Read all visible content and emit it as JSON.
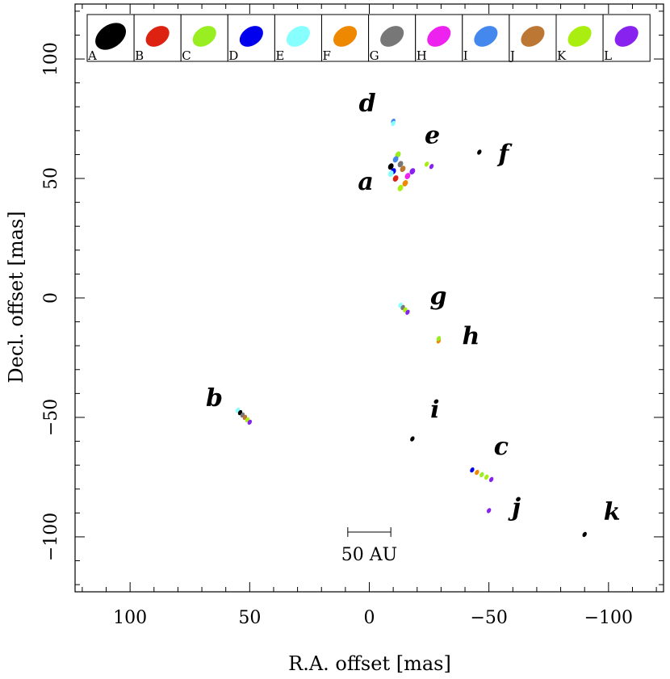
{
  "chart_data": {
    "type": "scatter",
    "title": "",
    "xlabel": "R.A. offset [mas]",
    "ylabel": "Decl. offset [mas]",
    "xlim": [
      123,
      -123
    ],
    "ylim": [
      -123,
      123
    ],
    "x_ticks": [
      100,
      50,
      0,
      -50,
      -100
    ],
    "x_tick_labels": [
      "100",
      "50",
      "0",
      "−50",
      "−100"
    ],
    "y_ticks": [
      100,
      50,
      0,
      -50,
      -100
    ],
    "y_tick_labels": [
      "100",
      "50",
      "0",
      "−50",
      "−100"
    ],
    "legend": [
      {
        "label": "A",
        "color": "#000000"
      },
      {
        "label": "B",
        "color": "#dd2211"
      },
      {
        "label": "C",
        "color": "#99ee22"
      },
      {
        "label": "D",
        "color": "#0000ee"
      },
      {
        "label": "E",
        "color": "#88ffff"
      },
      {
        "label": "F",
        "color": "#ee8800"
      },
      {
        "label": "G",
        "color": "#777777"
      },
      {
        "label": "H",
        "color": "#ee22ee"
      },
      {
        "label": "I",
        "color": "#4488ee"
      },
      {
        "label": "J",
        "color": "#bb7733"
      },
      {
        "label": "K",
        "color": "#aaee11"
      },
      {
        "label": "L",
        "color": "#8822ee"
      }
    ],
    "features": [
      {
        "label": "a",
        "x": -12,
        "y": 52,
        "rx": 9,
        "ry": 12.5,
        "style": "solid"
      },
      {
        "label": "b",
        "x": 53,
        "y": -50,
        "rx": 9,
        "ry": 9,
        "style": "solid"
      },
      {
        "label": "c",
        "x": -45,
        "y": -75,
        "rx": 8.5,
        "ry": 8.5,
        "style": "solid"
      },
      {
        "label": "d",
        "x": -10,
        "y": 74,
        "rx": 6,
        "ry": 6,
        "style": "solid"
      },
      {
        "label": "e",
        "x": -25,
        "y": 56,
        "rx": 5.5,
        "ry": 5.5,
        "style": "solid"
      },
      {
        "label": "f",
        "x": -46,
        "y": 61,
        "rx": 4,
        "ry": 4,
        "style": "dashed"
      },
      {
        "label": "g",
        "x": -14,
        "y": -4,
        "rx": 7,
        "ry": 7,
        "style": "solid"
      },
      {
        "label": "h",
        "x": -29,
        "y": -18,
        "rx": 6,
        "ry": 6,
        "style": "solid"
      },
      {
        "label": "i",
        "x": -18,
        "y": -59,
        "rx": 4,
        "ry": 4,
        "style": "dashed"
      },
      {
        "label": "j",
        "x": -50,
        "y": -89,
        "rx": 4,
        "ry": 4,
        "style": "dashed"
      },
      {
        "label": "k",
        "x": -90,
        "y": -99,
        "rx": 4,
        "ry": 4,
        "style": "dashed"
      }
    ],
    "spots": [
      {
        "feature": "a",
        "x": -9,
        "y": 55,
        "epoch": "A"
      },
      {
        "feature": "a",
        "x": -11,
        "y": 50,
        "epoch": "B"
      },
      {
        "feature": "a",
        "x": -12,
        "y": 60,
        "epoch": "C"
      },
      {
        "feature": "a",
        "x": -10,
        "y": 53,
        "epoch": "D"
      },
      {
        "feature": "a",
        "x": -9,
        "y": 52,
        "epoch": "E"
      },
      {
        "feature": "a",
        "x": -15,
        "y": 48,
        "epoch": "F"
      },
      {
        "feature": "a",
        "x": -13,
        "y": 56,
        "epoch": "G"
      },
      {
        "feature": "a",
        "x": -16,
        "y": 51,
        "epoch": "H"
      },
      {
        "feature": "a",
        "x": -11,
        "y": 58,
        "epoch": "I"
      },
      {
        "feature": "a",
        "x": -14,
        "y": 54,
        "epoch": "J"
      },
      {
        "feature": "a",
        "x": -13,
        "y": 46,
        "epoch": "K"
      },
      {
        "feature": "a",
        "x": -18,
        "y": 53,
        "epoch": "L"
      },
      {
        "feature": "b",
        "x": 55,
        "y": -47,
        "epoch": "E"
      },
      {
        "feature": "b",
        "x": 54,
        "y": -48,
        "epoch": "A"
      },
      {
        "feature": "b",
        "x": 53,
        "y": -49,
        "epoch": "G"
      },
      {
        "feature": "b",
        "x": 52,
        "y": -50,
        "epoch": "J"
      },
      {
        "feature": "b",
        "x": 51,
        "y": -51,
        "epoch": "K"
      },
      {
        "feature": "b",
        "x": 50,
        "y": -52,
        "epoch": "L"
      },
      {
        "feature": "c",
        "x": -43,
        "y": -72,
        "epoch": "D"
      },
      {
        "feature": "c",
        "x": -45,
        "y": -73,
        "epoch": "F"
      },
      {
        "feature": "c",
        "x": -47,
        "y": -74,
        "epoch": "C"
      },
      {
        "feature": "c",
        "x": -49,
        "y": -75,
        "epoch": "K"
      },
      {
        "feature": "c",
        "x": -51,
        "y": -76,
        "epoch": "L"
      },
      {
        "feature": "d",
        "x": -10,
        "y": 74,
        "epoch": "I"
      },
      {
        "feature": "d",
        "x": -10,
        "y": 73,
        "epoch": "E"
      },
      {
        "feature": "e",
        "x": -24,
        "y": 56,
        "epoch": "K"
      },
      {
        "feature": "e",
        "x": -26,
        "y": 55,
        "epoch": "L"
      },
      {
        "feature": "f",
        "x": -46,
        "y": 61,
        "epoch": "A"
      },
      {
        "feature": "g",
        "x": -13,
        "y": -3,
        "epoch": "E"
      },
      {
        "feature": "g",
        "x": -14,
        "y": -4,
        "epoch": "G"
      },
      {
        "feature": "g",
        "x": -15,
        "y": -5,
        "epoch": "K"
      },
      {
        "feature": "g",
        "x": -16,
        "y": -6,
        "epoch": "L"
      },
      {
        "feature": "h",
        "x": -29,
        "y": -18,
        "epoch": "F"
      },
      {
        "feature": "h",
        "x": -29,
        "y": -17,
        "epoch": "C"
      },
      {
        "feature": "i",
        "x": -18,
        "y": -59,
        "epoch": "A"
      },
      {
        "feature": "j",
        "x": -50,
        "y": -89,
        "epoch": "L"
      },
      {
        "feature": "k",
        "x": -90,
        "y": -99,
        "epoch": "A"
      }
    ],
    "scale_bar": {
      "label": "50 AU",
      "x_start": 9,
      "x_end": -9,
      "y": -98
    }
  }
}
